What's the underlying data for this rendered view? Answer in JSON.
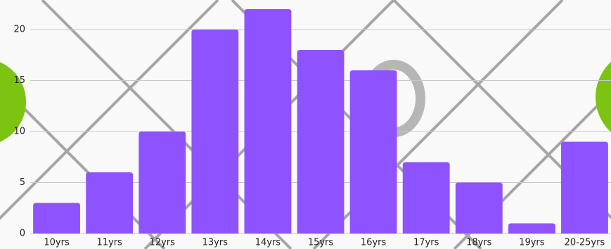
{
  "chart_data": {
    "type": "bar",
    "categories": [
      "10yrs",
      "11yrs",
      "12yrs",
      "13yrs",
      "14yrs",
      "15yrs",
      "16yrs",
      "17yrs",
      "18yrs",
      "19yrs",
      "20-25yrs"
    ],
    "values": [
      3,
      6,
      10,
      20,
      22,
      18,
      16,
      7,
      5,
      1,
      9
    ],
    "color": "#8f52ff",
    "ylim": [
      0,
      22
    ],
    "yticks": [
      0,
      5,
      10,
      15,
      20
    ],
    "grid": true
  }
}
